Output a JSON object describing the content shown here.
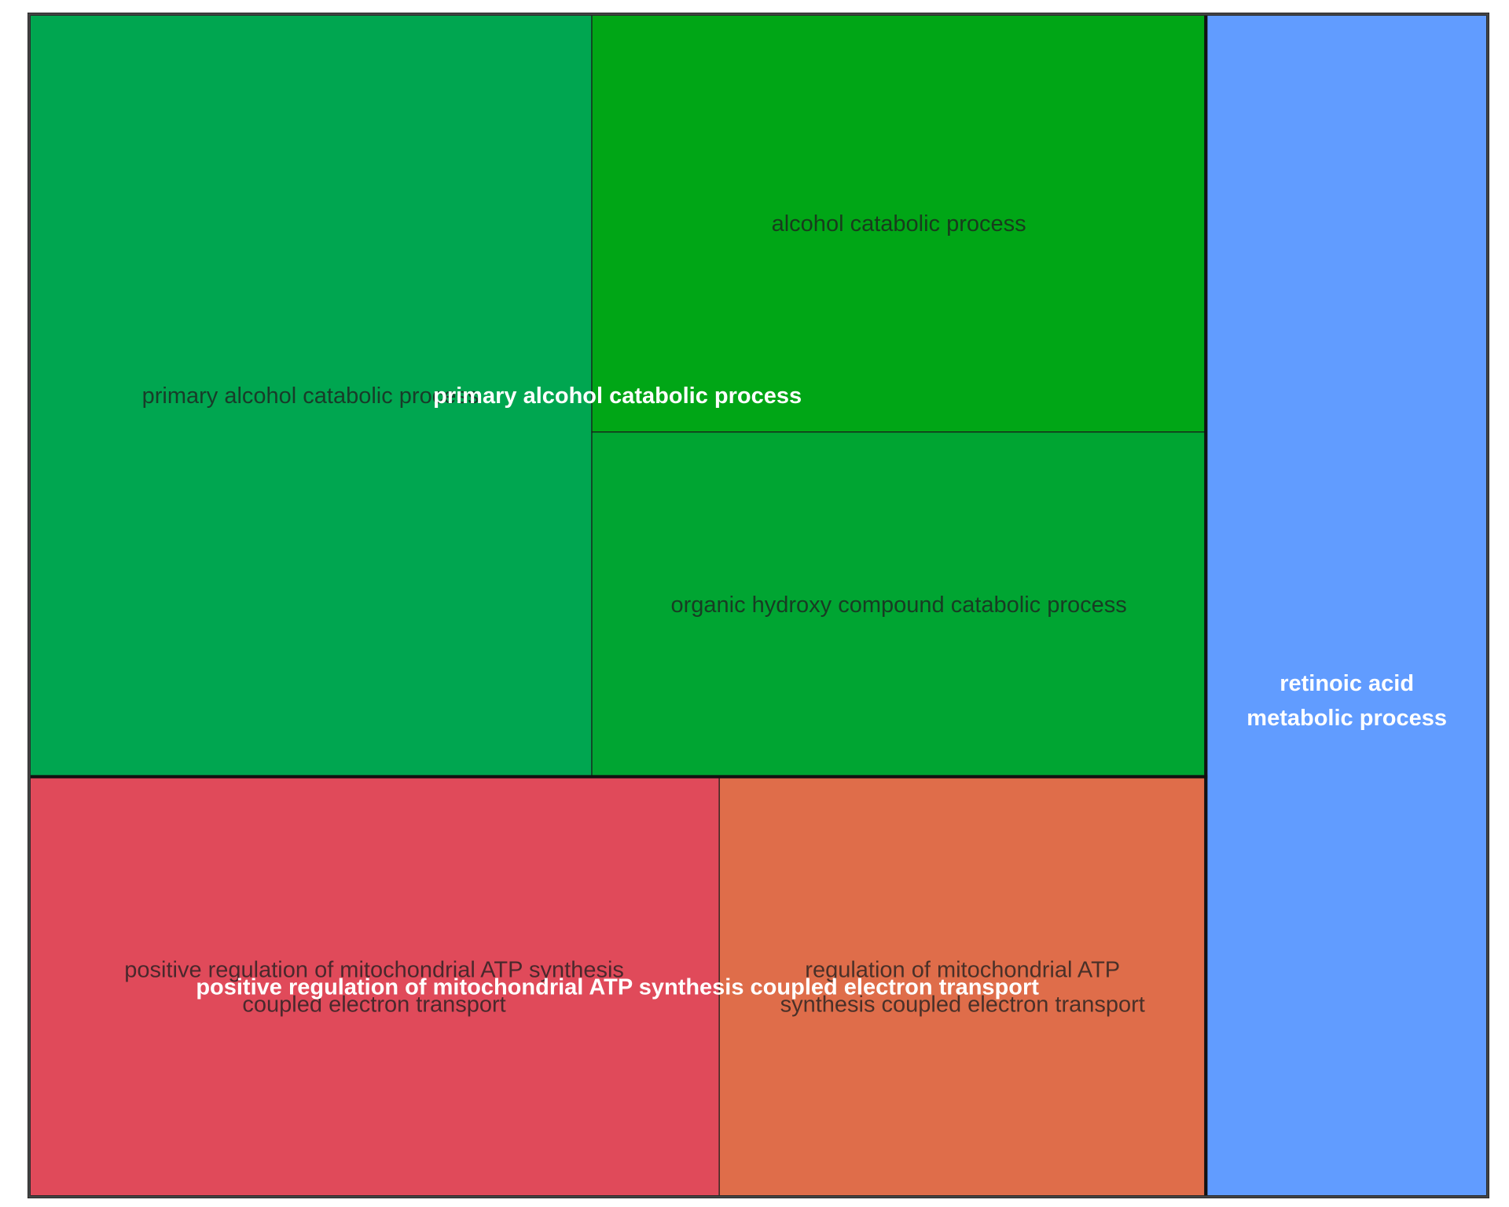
{
  "chart_data": {
    "type": "treemap",
    "groups": [
      {
        "name": "primary alcohol catabolic process",
        "children": [
          {
            "name": "primary alcohol catabolic process",
            "color": "#00a650",
            "value": 29.6
          },
          {
            "name": "alcohol catabolic process",
            "color": "#00a616",
            "value": 17.7
          },
          {
            "name": "organic hydroxy compound catabolic process",
            "color": "#00a532",
            "value": 14.6
          }
        ]
      },
      {
        "name": "positive regulation of mitochondrial ATP synthesis coupled electron transport",
        "children": [
          {
            "name": "positive regulation of mitochondrial ATP synthesis coupled electron transport",
            "color": "#e04a5a",
            "value": 20.0
          },
          {
            "name": "regulation of mitochondrial ATP synthesis coupled electron transport",
            "color": "#df6d4a",
            "value": 14.1
          }
        ]
      },
      {
        "name": "retinoic acid metabolic process",
        "children": [
          {
            "name": "retinoic acid metabolic process",
            "color": "#619cff",
            "value": 23.0
          }
        ]
      }
    ]
  }
}
